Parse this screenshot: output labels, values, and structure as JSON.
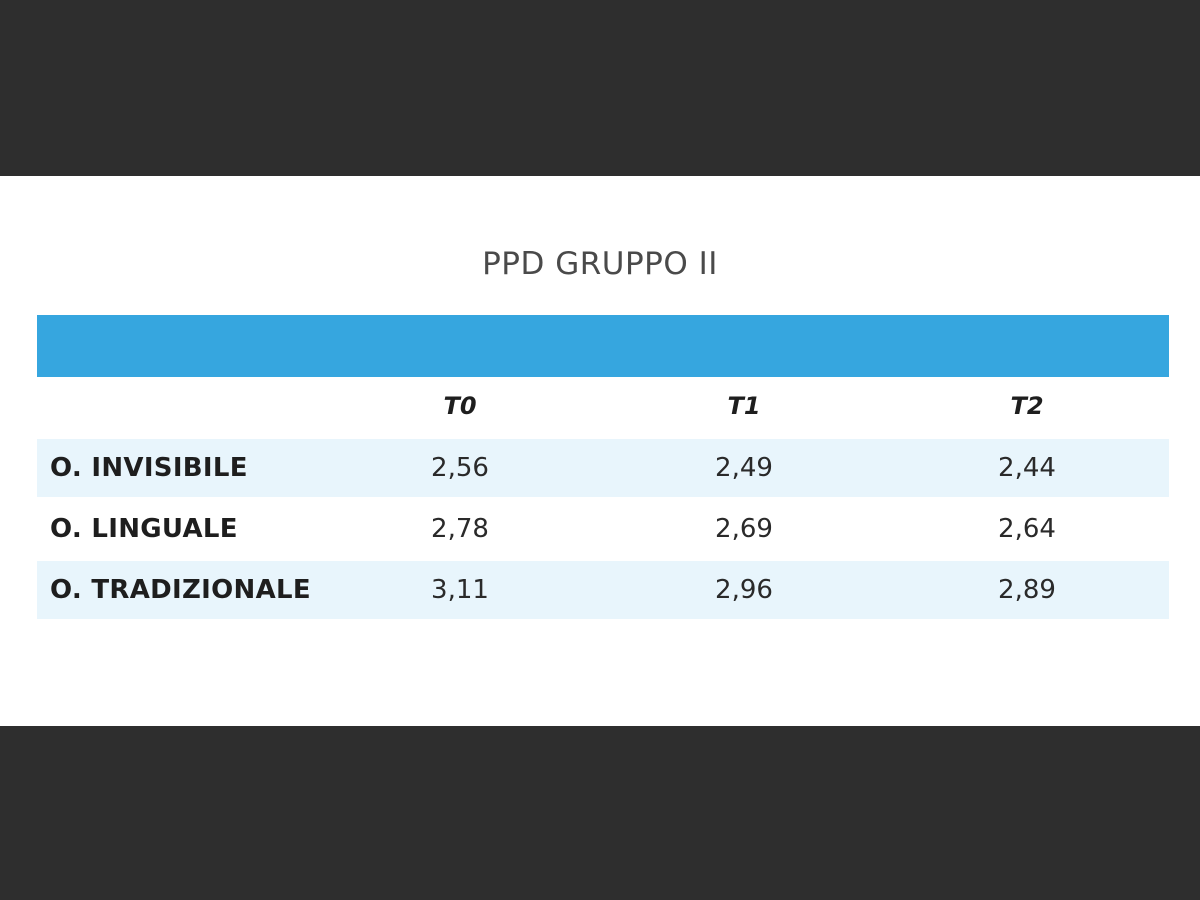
{
  "chart_data": {
    "type": "table",
    "title": "PPD GRUPPO II",
    "columns": [
      "T0",
      "T1",
      "T2"
    ],
    "rows": [
      {
        "label": "O. INVISIBILE",
        "values": [
          "2,56",
          "2,49",
          "2,44"
        ]
      },
      {
        "label": "O. LINGUALE",
        "values": [
          "2,78",
          "2,69",
          "2,64"
        ]
      },
      {
        "label": "O. TRADIZIONALE",
        "values": [
          "3,11",
          "2,96",
          "2,89"
        ]
      }
    ]
  },
  "colors": {
    "header_band": "#36a6df",
    "row_shade": "#e8f5fc",
    "background_frame": "#2e2e2e"
  }
}
